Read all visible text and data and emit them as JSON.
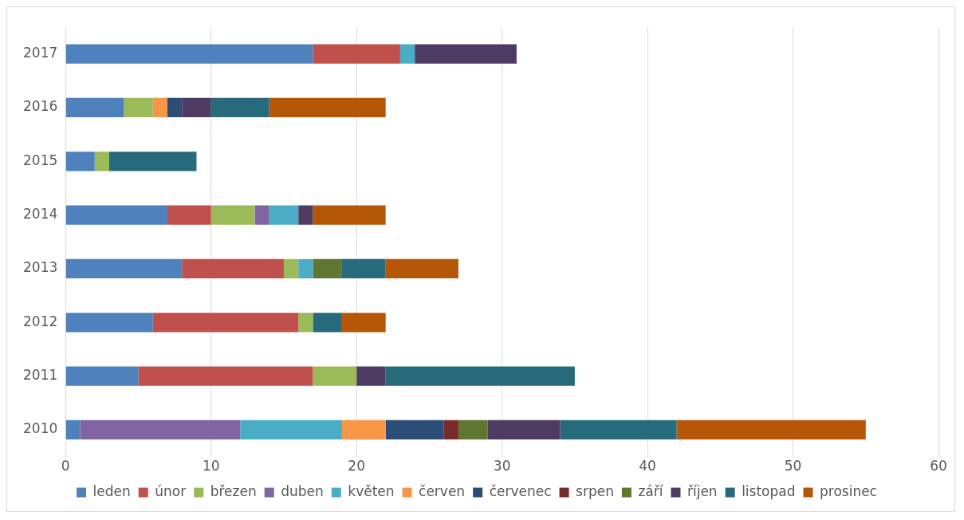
{
  "chart_data": {
    "type": "bar",
    "orientation": "horizontal",
    "stacked": true,
    "grid": "x",
    "legend": "bottom",
    "categories": [
      "2017",
      "2016",
      "2015",
      "2014",
      "2013",
      "2012",
      "2011",
      "2010"
    ],
    "xlim": [
      0,
      60
    ],
    "xticks": [
      0,
      10,
      20,
      30,
      40,
      50,
      60
    ],
    "series": [
      {
        "name": "leden",
        "color": "#4f81bd",
        "values": [
          17,
          4,
          2,
          7,
          8,
          6,
          5,
          1
        ]
      },
      {
        "name": "únor",
        "color": "#c0504d",
        "values": [
          6,
          0,
          0,
          3,
          7,
          10,
          12,
          0
        ]
      },
      {
        "name": "březen",
        "color": "#9bbb59",
        "values": [
          0,
          2,
          1,
          3,
          1,
          1,
          3,
          0
        ]
      },
      {
        "name": "duben",
        "color": "#8064a2",
        "values": [
          0,
          0,
          0,
          1,
          0,
          0,
          0,
          11
        ]
      },
      {
        "name": "květen",
        "color": "#4bacc6",
        "values": [
          1,
          0,
          0,
          2,
          1,
          0,
          0,
          7
        ]
      },
      {
        "name": "červen",
        "color": "#f79646",
        "values": [
          0,
          1,
          0,
          0,
          0,
          0,
          0,
          3
        ]
      },
      {
        "name": "červenec",
        "color": "#2c4d75",
        "values": [
          0,
          1,
          0,
          0,
          0,
          0,
          0,
          4
        ]
      },
      {
        "name": "srpen",
        "color": "#772c2a",
        "values": [
          0,
          0,
          0,
          0,
          0,
          0,
          0,
          1
        ]
      },
      {
        "name": "září",
        "color": "#5f7530",
        "values": [
          0,
          0,
          0,
          0,
          2,
          0,
          0,
          2
        ]
      },
      {
        "name": "říjen",
        "color": "#4d3b62",
        "values": [
          7,
          2,
          0,
          1,
          0,
          0,
          2,
          5
        ]
      },
      {
        "name": "listopad",
        "color": "#276a7c",
        "values": [
          0,
          4,
          6,
          0,
          3,
          2,
          13,
          8
        ]
      },
      {
        "name": "prosinec",
        "color": "#b65708",
        "values": [
          0,
          8,
          0,
          5,
          5,
          3,
          0,
          13
        ]
      }
    ]
  }
}
